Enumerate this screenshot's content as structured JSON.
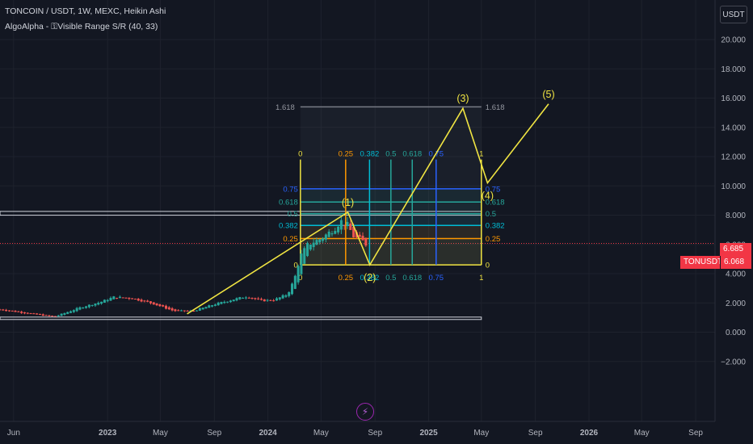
{
  "header": {
    "symbol_line": "TONCOIN / USDT, 1W, MEXC, Heikin Ashi",
    "indicator_line": "AlgoAlpha - ⚿Visible Range S/R (40, 33)"
  },
  "currency_button": "USDT",
  "price_tags": {
    "high": "6.685",
    "symbol": "TONUSDT",
    "last": "6.068"
  },
  "tool_icons": {
    "lightning": "lightning-icon"
  },
  "colors": {
    "background": "#131722",
    "up": "#26a69a",
    "down": "#ef5350",
    "wave": "#f0e442",
    "fib_yellow": "#f0e442",
    "fib_orange": "#ff9800",
    "fib_cyan": "#00bcd4",
    "fib_green": "#26a69a",
    "fib_blue": "#2962ff",
    "sr_line": "#d1d4dc",
    "price_tag": "#f23645"
  },
  "chart_data": {
    "type": "candlestick",
    "chart_style": "Heikin Ashi",
    "y_axis_position": "right",
    "ylim": [
      -2.8,
      21.5
    ],
    "y_ticks": [
      20,
      18,
      16,
      14,
      12,
      10,
      8,
      6,
      4,
      2,
      0,
      -2
    ],
    "y_tick_labels": [
      "20.000",
      "18.000",
      "16.000",
      "14.000",
      "12.000",
      "10.000",
      "8.000",
      "6.000",
      "4.000",
      "2.000",
      "0.000",
      "−2.000"
    ],
    "x_range": [
      "2022-05-01",
      "2026-10-15"
    ],
    "x_ticks": [
      {
        "date": "2022-06-01",
        "label": "Jun"
      },
      {
        "date": "2023-01-01",
        "label": "2023"
      },
      {
        "date": "2023-05-01",
        "label": "May"
      },
      {
        "date": "2023-09-01",
        "label": "Sep"
      },
      {
        "date": "2024-01-01",
        "label": "2024"
      },
      {
        "date": "2024-05-01",
        "label": "May"
      },
      {
        "date": "2024-09-01",
        "label": "Sep"
      },
      {
        "date": "2025-01-01",
        "label": "2025"
      },
      {
        "date": "2025-05-01",
        "label": "May"
      },
      {
        "date": "2025-09-01",
        "label": "Sep"
      },
      {
        "date": "2026-01-01",
        "label": "2026"
      },
      {
        "date": "2026-05-01",
        "label": "May"
      },
      {
        "date": "2026-09-01",
        "label": "Sep"
      }
    ],
    "last_price": 6.068,
    "high_price": 6.685,
    "price_series": [
      {
        "date": "2022-05-01",
        "value": 1.55
      },
      {
        "date": "2022-07-01",
        "value": 1.3
      },
      {
        "date": "2022-09-01",
        "value": 1.05
      },
      {
        "date": "2022-11-01",
        "value": 1.7
      },
      {
        "date": "2022-12-15",
        "value": 2.05
      },
      {
        "date": "2023-01-15",
        "value": 2.4
      },
      {
        "date": "2023-03-01",
        "value": 2.3
      },
      {
        "date": "2023-04-15",
        "value": 1.95
      },
      {
        "date": "2023-06-01",
        "value": 1.45
      },
      {
        "date": "2023-07-15",
        "value": 1.45
      },
      {
        "date": "2023-09-01",
        "value": 1.9
      },
      {
        "date": "2023-10-15",
        "value": 2.25
      },
      {
        "date": "2023-11-15",
        "value": 2.45
      },
      {
        "date": "2023-12-15",
        "value": 2.15
      },
      {
        "date": "2024-01-15",
        "value": 2.2
      },
      {
        "date": "2024-02-15",
        "value": 2.6
      },
      {
        "date": "2024-03-01",
        "value": 3.6
      },
      {
        "date": "2024-03-15",
        "value": 5.2
      },
      {
        "date": "2024-04-01",
        "value": 6.0
      },
      {
        "date": "2024-05-01",
        "value": 6.4
      },
      {
        "date": "2024-06-01",
        "value": 7.1
      },
      {
        "date": "2024-06-15",
        "value": 7.6
      },
      {
        "date": "2024-07-01",
        "value": 7.3
      },
      {
        "date": "2024-07-15",
        "value": 6.5
      },
      {
        "date": "2024-08-01",
        "value": 6.3
      },
      {
        "date": "2024-08-15",
        "value": 5.9
      }
    ],
    "elliott_wave": {
      "points": [
        {
          "date": "2023-07-01",
          "value": 1.25,
          "label": ""
        },
        {
          "date": "2024-07-01",
          "value": 8.2,
          "label": "(1)"
        },
        {
          "date": "2024-08-20",
          "value": 4.6,
          "label": "(2)"
        },
        {
          "date": "2025-03-20",
          "value": 15.3,
          "label": "(3)"
        },
        {
          "date": "2025-05-15",
          "value": 10.2,
          "label": "(4)"
        },
        {
          "date": "2025-10-01",
          "value": 15.6,
          "label": "(5)"
        }
      ]
    },
    "fib_retracement": {
      "start_date": "2024-03-15",
      "end_date": "2025-05-01",
      "levels": [
        {
          "level": "0",
          "value": 4.6,
          "color": "#f0e442"
        },
        {
          "level": "0.25",
          "value": 6.4,
          "color": "#ff9800"
        },
        {
          "level": "0.382",
          "value": 7.3,
          "color": "#00bcd4"
        },
        {
          "level": "0.5",
          "value": 8.1,
          "color": "#26a69a"
        },
        {
          "level": "0.618",
          "value": 8.9,
          "color": "#26a69a"
        },
        {
          "level": "0.75",
          "value": 9.8,
          "color": "#2962ff"
        }
      ],
      "extension": {
        "level": "1.618",
        "value": 15.4
      }
    },
    "fib_time_zones": [
      "0",
      "0.25",
      "0.382",
      "0.5",
      "0.618",
      "0.75",
      "1"
    ],
    "sr_levels": [
      8.2,
      8.05,
      0.95
    ]
  }
}
